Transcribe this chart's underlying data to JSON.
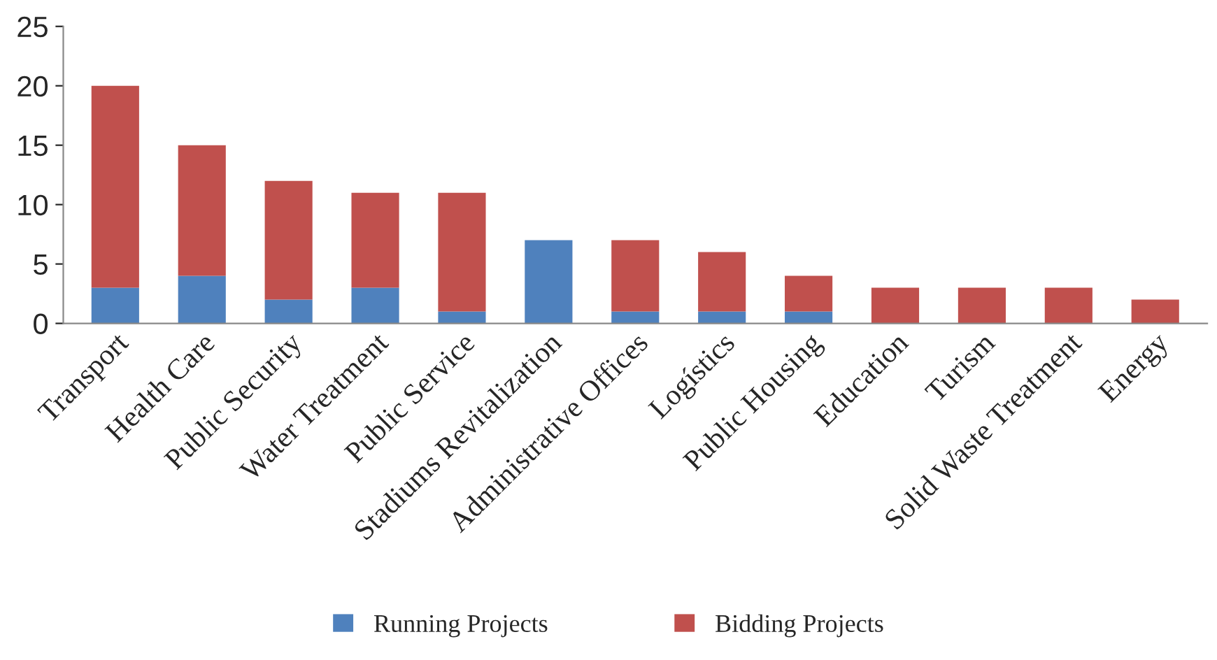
{
  "chart_data": {
    "type": "bar",
    "stacked": true,
    "categories": [
      "Transport",
      "Health Care",
      "Public Security",
      "Water Treatment",
      "Public Service",
      "Stadiums Revitalization",
      "Administrative Offices",
      "Logístics",
      "Public Housing",
      "Education",
      "Turism",
      "Solid Waste Treatment",
      "Energy"
    ],
    "series": [
      {
        "name": "Running Projects",
        "color": "#4f81bd",
        "values": [
          3,
          4,
          2,
          3,
          1,
          7,
          1,
          1,
          1,
          0,
          0,
          0,
          0
        ]
      },
      {
        "name": "Bidding Projects",
        "color": "#c0504d",
        "values": [
          17,
          11,
          10,
          8,
          10,
          0,
          6,
          5,
          3,
          3,
          3,
          3,
          2
        ]
      }
    ],
    "ylim": [
      0,
      25
    ],
    "yticks": [
      0,
      5,
      10,
      15,
      20,
      25
    ],
    "grid": false,
    "legend": "bottom"
  }
}
